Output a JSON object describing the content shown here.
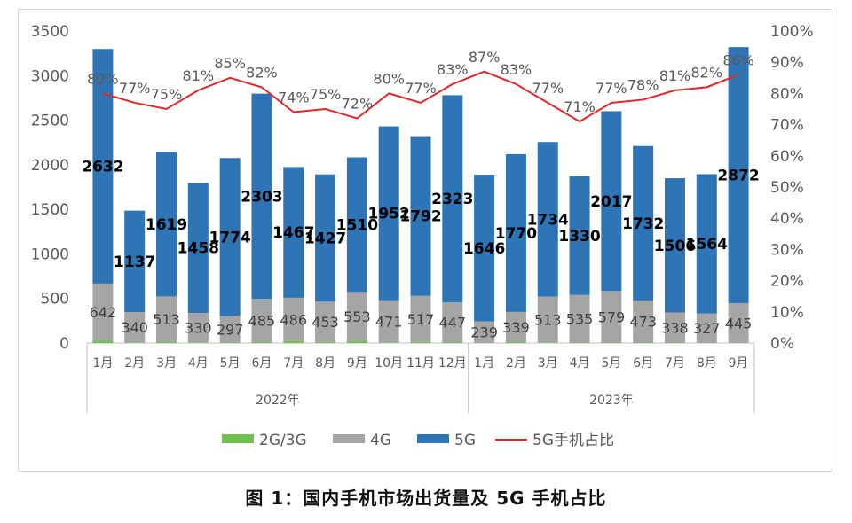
{
  "caption": "图 1：国内手机市场出货量及 5G 手机占比",
  "chart_data": {
    "type": "bar",
    "stacked": true,
    "title": "",
    "xlabel": "",
    "ylabel": "",
    "categories": [
      "1月",
      "2月",
      "3月",
      "4月",
      "5月",
      "6月",
      "7月",
      "8月",
      "9月",
      "10月",
      "11月",
      "12月",
      "1月",
      "2月",
      "3月",
      "4月",
      "5月",
      "6月",
      "7月",
      "8月",
      "9月"
    ],
    "groups": [
      {
        "label": "2022年",
        "count": 12
      },
      {
        "label": "2023年",
        "count": 9
      }
    ],
    "series": [
      {
        "name": "2G/3G",
        "color": "#70c050",
        "values": [
          25,
          8,
          10,
          8,
          5,
          10,
          22,
          12,
          20,
          8,
          12,
          10,
          4,
          10,
          8,
          5,
          5,
          5,
          5,
          4,
          3
        ]
      },
      {
        "name": "4G",
        "color": "#a5a5a5",
        "values": [
          642,
          340,
          513,
          330,
          297,
          485,
          486,
          453,
          553,
          471,
          517,
          447,
          239,
          339,
          513,
          535,
          579,
          473,
          338,
          327,
          445
        ]
      },
      {
        "name": "5G",
        "color": "#2e75b6",
        "values": [
          2632,
          1137,
          1619,
          1458,
          1774,
          2303,
          1467,
          1427,
          1510,
          1952,
          1792,
          2323,
          1646,
          1770,
          1734,
          1330,
          2017,
          1732,
          1506,
          1564,
          2872
        ]
      }
    ],
    "line_series": {
      "name": "5G手机占比",
      "color": "#e32727",
      "axis": "right",
      "values": [
        80,
        77,
        75,
        81,
        85,
        82,
        74,
        75,
        72,
        80,
        77,
        83,
        87,
        83,
        77,
        71,
        77,
        78,
        81,
        82,
        86
      ]
    },
    "y_left": {
      "ylim": [
        0,
        3500
      ],
      "ticks": [
        "0",
        "500",
        "1000",
        "1500",
        "2000",
        "2500",
        "3000",
        "3500"
      ]
    },
    "y_right": {
      "ylim": [
        0,
        100
      ],
      "ticks": [
        "0%",
        "10%",
        "20%",
        "30%",
        "40%",
        "50%",
        "60%",
        "70%",
        "80%",
        "90%",
        "100%"
      ]
    },
    "legend": {
      "position": "bottom",
      "entries": [
        "2G/3G",
        "4G",
        "5G",
        "5G手机占比"
      ]
    },
    "grid": false
  }
}
